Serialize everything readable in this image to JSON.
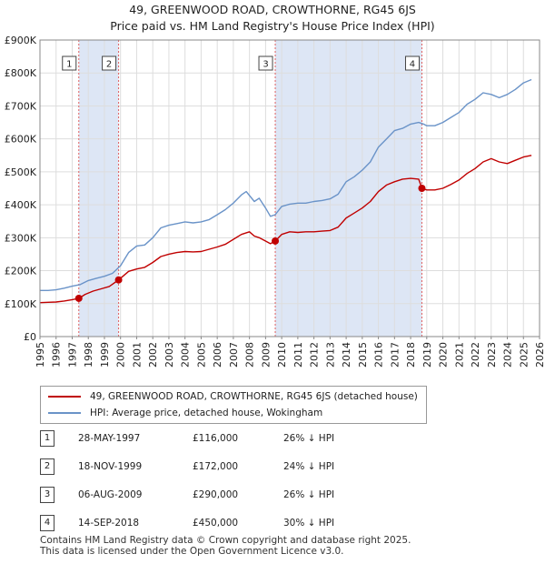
{
  "title": {
    "line1": "49, GREENWOOD ROAD, CROWTHORNE, RG45 6JS",
    "line2": "Price paid vs. HM Land Registry's House Price Index (HPI)"
  },
  "chart_data": {
    "type": "line",
    "xlim": [
      1995,
      2026
    ],
    "ylim": [
      0,
      900000
    ],
    "y_ticks": [
      {
        "value": 0,
        "label": "£0"
      },
      {
        "value": 100000,
        "label": "£100K"
      },
      {
        "value": 200000,
        "label": "£200K"
      },
      {
        "value": 300000,
        "label": "£300K"
      },
      {
        "value": 400000,
        "label": "£400K"
      },
      {
        "value": 500000,
        "label": "£500K"
      },
      {
        "value": 600000,
        "label": "£600K"
      },
      {
        "value": 700000,
        "label": "£700K"
      },
      {
        "value": 800000,
        "label": "£800K"
      },
      {
        "value": 900000,
        "label": "£900K"
      }
    ],
    "x_ticks": [
      "1995",
      "1996",
      "1997",
      "1998",
      "1999",
      "2000",
      "2001",
      "2002",
      "2003",
      "2004",
      "2005",
      "2006",
      "2007",
      "2008",
      "2009",
      "2010",
      "2011",
      "2012",
      "2013",
      "2014",
      "2015",
      "2016",
      "2017",
      "2018",
      "2019",
      "2020",
      "2021",
      "2022",
      "2023",
      "2024",
      "2025",
      "2026"
    ],
    "shaded_periods": [
      {
        "from": 1997.41,
        "to": 1999.88
      },
      {
        "from": 2009.6,
        "to": 2018.7
      }
    ],
    "series": [
      {
        "name": "HPI: Average price, detached house, Wokingham",
        "color": "#6a93c8",
        "x": [
          1995.0,
          1995.5,
          1996.0,
          1996.5,
          1997.0,
          1997.5,
          1998.0,
          1998.5,
          1999.0,
          1999.5,
          2000.0,
          2000.5,
          2001.0,
          2001.5,
          2002.0,
          2002.5,
          2003.0,
          2003.5,
          2004.0,
          2004.5,
          2005.0,
          2005.5,
          2006.0,
          2006.5,
          2007.0,
          2007.5,
          2007.8,
          2008.3,
          2008.6,
          2009.0,
          2009.3,
          2009.6,
          2010.0,
          2010.5,
          2011.0,
          2011.5,
          2012.0,
          2012.5,
          2013.0,
          2013.5,
          2014.0,
          2014.5,
          2015.0,
          2015.5,
          2016.0,
          2016.5,
          2017.0,
          2017.5,
          2018.0,
          2018.5,
          2018.8,
          2019.0,
          2019.5,
          2020.0,
          2020.5,
          2021.0,
          2021.5,
          2022.0,
          2022.5,
          2023.0,
          2023.5,
          2024.0,
          2024.5,
          2025.0,
          2025.5
        ],
        "values": [
          140000,
          140000,
          142000,
          147000,
          153000,
          158000,
          170000,
          177000,
          183000,
          192000,
          215000,
          255000,
          275000,
          278000,
          300000,
          330000,
          338000,
          343000,
          348000,
          345000,
          348000,
          355000,
          370000,
          385000,
          405000,
          430000,
          440000,
          410000,
          420000,
          390000,
          365000,
          370000,
          395000,
          402000,
          405000,
          405000,
          410000,
          413000,
          418000,
          432000,
          470000,
          485000,
          505000,
          530000,
          575000,
          600000,
          625000,
          632000,
          645000,
          650000,
          645000,
          640000,
          640000,
          650000,
          665000,
          680000,
          705000,
          720000,
          740000,
          735000,
          725000,
          735000,
          750000,
          770000,
          780000
        ]
      },
      {
        "name": "49, GREENWOOD ROAD, CROWTHORNE, RG45 6JS (detached house)",
        "color": "#c00000",
        "x": [
          1995.0,
          1995.5,
          1996.0,
          1996.5,
          1997.0,
          1997.41,
          1997.8,
          1998.3,
          1998.8,
          1999.3,
          1999.88,
          2000.5,
          2001.0,
          2001.5,
          2002.0,
          2002.5,
          2003.0,
          2003.5,
          2004.0,
          2004.5,
          2005.0,
          2005.5,
          2006.0,
          2006.5,
          2007.0,
          2007.5,
          2008.0,
          2008.3,
          2008.6,
          2009.0,
          2009.3,
          2009.6,
          2010.0,
          2010.5,
          2011.0,
          2011.5,
          2012.0,
          2012.5,
          2013.0,
          2013.5,
          2014.0,
          2014.5,
          2015.0,
          2015.5,
          2016.0,
          2016.5,
          2017.0,
          2017.5,
          2018.0,
          2018.5,
          2018.7,
          2019.0,
          2019.5,
          2020.0,
          2020.5,
          2021.0,
          2021.5,
          2022.0,
          2022.5,
          2023.0,
          2023.5,
          2024.0,
          2024.5,
          2025.0,
          2025.5
        ],
        "values": [
          103000,
          104000,
          105000,
          108000,
          112000,
          116000,
          128000,
          138000,
          145000,
          152000,
          172000,
          198000,
          205000,
          210000,
          225000,
          243000,
          250000,
          255000,
          258000,
          257000,
          258000,
          265000,
          272000,
          280000,
          295000,
          310000,
          318000,
          305000,
          300000,
          290000,
          282000,
          290000,
          310000,
          318000,
          316000,
          318000,
          318000,
          320000,
          322000,
          332000,
          360000,
          375000,
          390000,
          410000,
          440000,
          460000,
          470000,
          478000,
          480000,
          478000,
          450000,
          445000,
          445000,
          450000,
          462000,
          475000,
          495000,
          510000,
          530000,
          540000,
          530000,
          525000,
          535000,
          545000,
          550000
        ]
      }
    ],
    "sales": [
      {
        "id": "1",
        "x": 1997.41,
        "value": 116000
      },
      {
        "id": "2",
        "x": 1999.88,
        "value": 172000
      },
      {
        "id": "3",
        "x": 2009.6,
        "value": 290000
      },
      {
        "id": "4",
        "x": 2018.7,
        "value": 450000
      }
    ]
  },
  "legend": {
    "red_label": "49, GREENWOOD ROAD, CROWTHORNE, RG45 6JS (detached house)",
    "blue_label": "HPI: Average price, detached house, Wokingham",
    "red_color": "#c00000",
    "blue_color": "#6a93c8"
  },
  "sales_table": [
    {
      "num": "1",
      "date": "28-MAY-1997",
      "price": "£116,000",
      "hpi": "26% ↓ HPI"
    },
    {
      "num": "2",
      "date": "18-NOV-1999",
      "price": "£172,000",
      "hpi": "24% ↓ HPI"
    },
    {
      "num": "3",
      "date": "06-AUG-2009",
      "price": "£290,000",
      "hpi": "26% ↓ HPI"
    },
    {
      "num": "4",
      "date": "14-SEP-2018",
      "price": "£450,000",
      "hpi": "30% ↓ HPI"
    }
  ],
  "footer": {
    "line1": "Contains HM Land Registry data © Crown copyright and database right 2025.",
    "line2": "This data is licensed under the Open Government Licence v3.0."
  }
}
